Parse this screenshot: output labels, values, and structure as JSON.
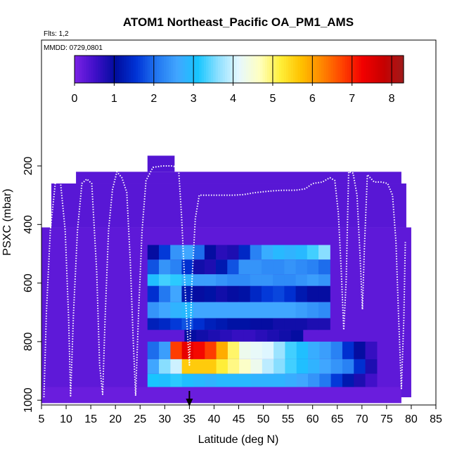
{
  "chart_data": {
    "type": "heatmap",
    "title": "ATOM1 Northeast_Pacific OA_PM1_AMS",
    "flights_note": "Flts: 1,2",
    "date_note": "MMDD: 0729,0801",
    "xlabel": "Latitude (deg N)",
    "ylabel": "PSXC (mbar)",
    "x_ticks": [
      5,
      10,
      15,
      20,
      25,
      30,
      35,
      40,
      45,
      50,
      55,
      60,
      65,
      70,
      75,
      80,
      85
    ],
    "y_ticks": [
      200,
      400,
      600,
      800,
      1000
    ],
    "xlim": [
      5,
      85
    ],
    "ylim": [
      1000,
      50
    ],
    "colorbar": {
      "ticks": [
        0,
        1,
        2,
        3,
        4,
        5,
        6,
        7,
        8
      ],
      "range": [
        0,
        8.3
      ],
      "colors": [
        "#7B22E6",
        "#3F0FC8",
        "#000D9E",
        "#0033D6",
        "#2277F0",
        "#41A6FF",
        "#17C6FF",
        "#8FE0FF",
        "#E6F8FF",
        "#FFFFC0",
        "#FFEF3A",
        "#FFC200",
        "#FF8800",
        "#FF4400",
        "#F20000",
        "#C80000",
        "#A01A1A"
      ]
    },
    "arrow_marker_latitude": 35,
    "background_layers": [
      {
        "p_top": 410,
        "p_bottom": 990,
        "x_from": 5,
        "x_to": 80,
        "value": 0.25
      },
      {
        "p_top": 260,
        "p_bottom": 410,
        "x_from": 7,
        "x_to": 79,
        "value": 0.3
      },
      {
        "p_top": 220,
        "p_bottom": 260,
        "x_from": 12,
        "x_to": 78,
        "value": 0.3
      },
      {
        "p_top": 165,
        "p_bottom": 220,
        "x_from": 26.5,
        "x_to": 32,
        "value": 0.35
      },
      {
        "p_top": 955,
        "p_bottom": 1010,
        "x_from": 5,
        "x_to": 78,
        "value": 0.15
      }
    ],
    "bands": [
      {
        "p_top": 470,
        "p_bottom": 520,
        "x_from": 26.5,
        "x_to": 63.5,
        "values": [
          1.0,
          1.6,
          2.4,
          2.6,
          2.0,
          1.0,
          0.7,
          0.8,
          1.4,
          2.2,
          2.7,
          2.9,
          2.8,
          2.9,
          3.3,
          3.6
        ]
      },
      {
        "p_top": 520,
        "p_bottom": 570,
        "x_from": 26.5,
        "x_to": 63.5,
        "values": [
          1.8,
          2.4,
          2.2,
          1.5,
          0.9,
          0.8,
          1.2,
          1.8,
          2.4,
          2.4,
          2.3,
          2.3,
          2.4,
          2.3,
          2.2,
          2.0
        ]
      },
      {
        "p_top": 570,
        "p_bottom": 610,
        "x_from": 26.5,
        "x_to": 63.5,
        "values": [
          3.0,
          3.3,
          3.2,
          2.8,
          2.5,
          2.5,
          2.4,
          2.3,
          2.3,
          2.4,
          2.4,
          2.3,
          2.3,
          2.4,
          2.5,
          2.4
        ]
      },
      {
        "p_top": 610,
        "p_bottom": 665,
        "x_from": 26.5,
        "x_to": 63.5,
        "values": [
          1.5,
          2.1,
          2.6,
          1.2,
          1.0,
          1.1,
          0.9,
          1.0,
          1.1,
          1.4,
          1.6,
          1.7,
          1.5,
          1.2,
          1.0,
          1.0
        ]
      },
      {
        "p_top": 665,
        "p_bottom": 720,
        "x_from": 26.5,
        "x_to": 63.5,
        "values": [
          2.4,
          2.6,
          2.8,
          2.9,
          2.6,
          2.6,
          2.6,
          2.6,
          2.6,
          2.6,
          2.6,
          2.6,
          2.6,
          2.5,
          2.4,
          2.3
        ]
      },
      {
        "p_top": 720,
        "p_bottom": 760,
        "x_from": 26.5,
        "x_to": 63.5,
        "values": [
          1.3,
          1.4,
          1.6,
          1.8,
          1.5,
          1.3,
          1.2,
          1.1,
          1.1,
          1.0,
          1.0,
          0.9,
          0.9,
          0.9,
          0.8,
          0.8
        ]
      },
      {
        "p_top": 760,
        "p_bottom": 800,
        "x_from": 34,
        "x_to": 58,
        "values": [
          1.0,
          0.9,
          0.8,
          0.7,
          0.6,
          0.6,
          0.7,
          0.8,
          0.9,
          1.0
        ]
      },
      {
        "p_top": 800,
        "p_bottom": 860,
        "x_from": 26.5,
        "x_to": 73,
        "values": [
          2.0,
          2.5,
          6.8,
          7.4,
          7.2,
          6.8,
          5.9,
          5.0,
          4.3,
          4.2,
          4.1,
          3.7,
          3.3,
          3.0,
          2.7,
          2.5,
          2.2,
          1.5,
          1.0,
          0.6
        ]
      },
      {
        "p_top": 860,
        "p_bottom": 910,
        "x_from": 26.5,
        "x_to": 73,
        "values": [
          2.6,
          3.6,
          4.0,
          5.6,
          5.6,
          5.6,
          5.2,
          4.9,
          4.6,
          4.3,
          3.9,
          3.6,
          3.3,
          3.0,
          2.8,
          2.6,
          2.4,
          2.2,
          1.5,
          0.8
        ]
      },
      {
        "p_top": 910,
        "p_bottom": 955,
        "x_from": 26.5,
        "x_to": 73,
        "values": [
          3.1,
          3.0,
          3.2,
          3.0,
          2.9,
          2.8,
          2.9,
          2.9,
          2.9,
          2.8,
          2.8,
          2.8,
          2.7,
          2.6,
          2.4,
          2.1,
          1.6,
          1.2,
          0.8,
          0.5
        ]
      }
    ],
    "flight_track_points": [
      [
        5.5,
        990
      ],
      [
        6.0,
        700
      ],
      [
        6.8,
        420
      ],
      [
        7.8,
        260
      ],
      [
        8.8,
        245
      ],
      [
        9.8,
        420
      ],
      [
        10.5,
        720
      ],
      [
        10.9,
        985
      ],
      [
        11.5,
        700
      ],
      [
        12.3,
        420
      ],
      [
        13.2,
        260
      ],
      [
        14.2,
        245
      ],
      [
        15.2,
        260
      ],
      [
        16.2,
        560
      ],
      [
        16.8,
        880
      ],
      [
        17.4,
        980
      ],
      [
        17.9,
        720
      ],
      [
        18.6,
        420
      ],
      [
        19.4,
        280
      ],
      [
        20.3,
        220
      ],
      [
        21.3,
        240
      ],
      [
        22.3,
        290
      ],
      [
        23.0,
        520
      ],
      [
        23.6,
        790
      ],
      [
        24.1,
        985
      ],
      [
        24.7,
        700
      ],
      [
        25.4,
        420
      ],
      [
        26.2,
        250
      ],
      [
        27.6,
        205
      ],
      [
        29.5,
        200
      ],
      [
        31.5,
        200
      ],
      [
        32.8,
        205
      ],
      [
        33.4,
        370
      ],
      [
        34.0,
        580
      ],
      [
        34.5,
        740
      ],
      [
        35.0,
        880
      ],
      [
        35.5,
        600
      ],
      [
        36.2,
        380
      ],
      [
        37.0,
        300
      ],
      [
        38.5,
        300
      ],
      [
        40.0,
        300
      ],
      [
        42.0,
        300
      ],
      [
        44.0,
        300
      ],
      [
        46.0,
        298
      ],
      [
        48.0,
        292
      ],
      [
        50.0,
        288
      ],
      [
        52.0,
        285
      ],
      [
        54.0,
        283
      ],
      [
        56.0,
        283
      ],
      [
        57.0,
        282
      ],
      [
        58.5,
        278
      ],
      [
        60.0,
        260
      ],
      [
        62.0,
        255
      ],
      [
        63.5,
        240
      ],
      [
        64.5,
        250
      ],
      [
        65.2,
        360
      ],
      [
        65.8,
        560
      ],
      [
        66.3,
        760
      ],
      [
        66.8,
        590
      ],
      [
        67.3,
        220
      ],
      [
        68.2,
        225
      ],
      [
        69.0,
        300
      ],
      [
        69.6,
        500
      ],
      [
        70.1,
        690
      ],
      [
        70.5,
        480
      ],
      [
        71.1,
        230
      ],
      [
        72.5,
        255
      ],
      [
        74.0,
        255
      ],
      [
        75.2,
        260
      ],
      [
        76.2,
        300
      ],
      [
        76.9,
        460
      ],
      [
        77.4,
        700
      ],
      [
        78.0,
        960
      ],
      [
        78.5,
        720
      ],
      [
        78.8,
        460
      ]
    ]
  }
}
